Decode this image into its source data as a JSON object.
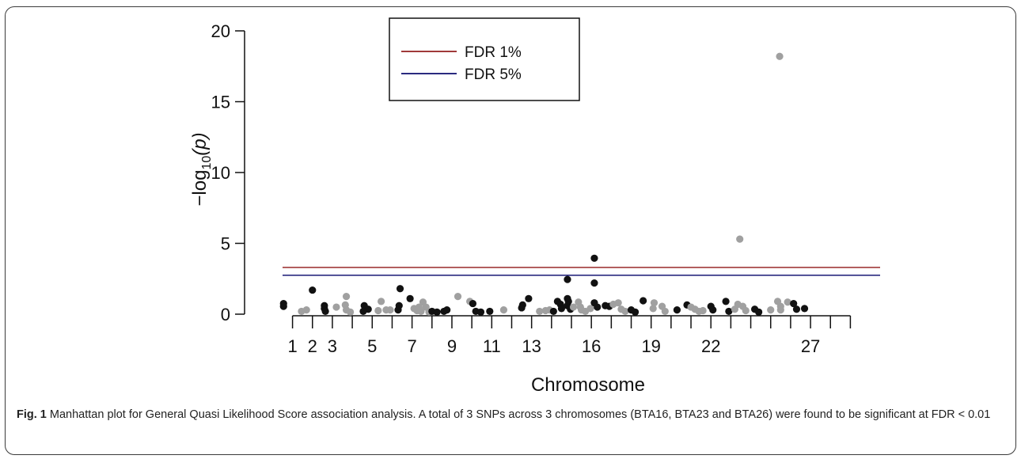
{
  "chart_data": {
    "type": "scatter",
    "title": "",
    "xlabel": "Chromosome",
    "ylabel_prefix": "−log",
    "ylabel_sub": "10",
    "ylabel_suffix": "(p)",
    "ylim": [
      0,
      20
    ],
    "yticks": [
      "0",
      "5",
      "10",
      "15",
      "20"
    ],
    "xlim": [
      0.5,
      29.5
    ],
    "chromosome_ticks": [
      1,
      2,
      3,
      4,
      5,
      6,
      7,
      8,
      9,
      10,
      11,
      12,
      13,
      14,
      15,
      16,
      17,
      18,
      19,
      20,
      21,
      22,
      23,
      24,
      25,
      26,
      27,
      28,
      29
    ],
    "chromosome_tick_labels": [
      {
        "chr": 1,
        "label": "1"
      },
      {
        "chr": 2,
        "label": "2"
      },
      {
        "chr": 3,
        "label": "3"
      },
      {
        "chr": 5,
        "label": "5"
      },
      {
        "chr": 7,
        "label": "7"
      },
      {
        "chr": 9,
        "label": "9"
      },
      {
        "chr": 11,
        "label": "11"
      },
      {
        "chr": 13,
        "label": "13"
      },
      {
        "chr": 16,
        "label": "16"
      },
      {
        "chr": 19,
        "label": "19"
      },
      {
        "chr": 22,
        "label": "22"
      },
      {
        "chr": 27,
        "label": "27"
      }
    ],
    "thresholds": [
      {
        "name": "FDR 1%",
        "y": 3.3,
        "color": "#a03a3a"
      },
      {
        "name": "FDR 5%",
        "y": 2.75,
        "color": "#2a2a80"
      }
    ],
    "legend_position": "top-center",
    "colors": {
      "odd": "#111111",
      "even": "#a0a0a0"
    },
    "points": [
      {
        "x": 0.55,
        "y": 0.75
      },
      {
        "x": 0.55,
        "y": 0.55
      },
      {
        "x": 1.45,
        "y": 0.2
      },
      {
        "x": 1.7,
        "y": 0.3
      },
      {
        "x": 2.0,
        "y": 1.7
      },
      {
        "x": 2.6,
        "y": 0.4
      },
      {
        "x": 2.6,
        "y": 0.6
      },
      {
        "x": 2.65,
        "y": 0.2
      },
      {
        "x": 3.2,
        "y": 0.5
      },
      {
        "x": 3.7,
        "y": 1.25
      },
      {
        "x": 3.65,
        "y": 0.65
      },
      {
        "x": 3.7,
        "y": 0.3
      },
      {
        "x": 3.9,
        "y": 0.15
      },
      {
        "x": 4.6,
        "y": 0.6
      },
      {
        "x": 4.8,
        "y": 0.35
      },
      {
        "x": 4.55,
        "y": 0.2
      },
      {
        "x": 5.3,
        "y": 0.25
      },
      {
        "x": 5.45,
        "y": 0.9
      },
      {
        "x": 5.7,
        "y": 0.3
      },
      {
        "x": 5.9,
        "y": 0.3
      },
      {
        "x": 6.4,
        "y": 1.8
      },
      {
        "x": 6.35,
        "y": 0.6
      },
      {
        "x": 6.3,
        "y": 0.3
      },
      {
        "x": 6.9,
        "y": 1.1
      },
      {
        "x": 7.1,
        "y": 0.4
      },
      {
        "x": 7.25,
        "y": 0.25
      },
      {
        "x": 7.35,
        "y": 0.5
      },
      {
        "x": 7.45,
        "y": 0.2
      },
      {
        "x": 7.55,
        "y": 0.85
      },
      {
        "x": 7.7,
        "y": 0.5
      },
      {
        "x": 7.85,
        "y": 0.15
      },
      {
        "x": 8.0,
        "y": 0.2
      },
      {
        "x": 8.25,
        "y": 0.15
      },
      {
        "x": 8.6,
        "y": 0.2
      },
      {
        "x": 8.75,
        "y": 0.3
      },
      {
        "x": 9.3,
        "y": 1.25
      },
      {
        "x": 9.9,
        "y": 0.9
      },
      {
        "x": 10.05,
        "y": 0.75
      },
      {
        "x": 10.2,
        "y": 0.2
      },
      {
        "x": 10.45,
        "y": 0.15
      },
      {
        "x": 10.9,
        "y": 0.2
      },
      {
        "x": 11.6,
        "y": 0.3
      },
      {
        "x": 12.55,
        "y": 0.65
      },
      {
        "x": 12.5,
        "y": 0.45
      },
      {
        "x": 12.85,
        "y": 1.1
      },
      {
        "x": 13.4,
        "y": 0.2
      },
      {
        "x": 13.7,
        "y": 0.25
      },
      {
        "x": 13.9,
        "y": 0.3
      },
      {
        "x": 14.1,
        "y": 0.2
      },
      {
        "x": 14.3,
        "y": 0.9
      },
      {
        "x": 14.45,
        "y": 0.7
      },
      {
        "x": 14.5,
        "y": 0.4
      },
      {
        "x": 14.8,
        "y": 2.45
      },
      {
        "x": 14.8,
        "y": 1.1
      },
      {
        "x": 14.85,
        "y": 0.9
      },
      {
        "x": 14.8,
        "y": 0.6
      },
      {
        "x": 14.95,
        "y": 0.35
      },
      {
        "x": 15.1,
        "y": 0.5
      },
      {
        "x": 15.35,
        "y": 0.85
      },
      {
        "x": 15.45,
        "y": 0.5
      },
      {
        "x": 15.5,
        "y": 0.3
      },
      {
        "x": 15.7,
        "y": 0.2
      },
      {
        "x": 15.95,
        "y": 0.4
      },
      {
        "x": 16.15,
        "y": 3.95
      },
      {
        "x": 16.15,
        "y": 2.2
      },
      {
        "x": 16.15,
        "y": 0.8
      },
      {
        "x": 16.3,
        "y": 0.5
      },
      {
        "x": 16.7,
        "y": 0.6
      },
      {
        "x": 16.9,
        "y": 0.55
      },
      {
        "x": 17.1,
        "y": 0.7
      },
      {
        "x": 17.35,
        "y": 0.8
      },
      {
        "x": 17.5,
        "y": 0.35
      },
      {
        "x": 17.7,
        "y": 0.2
      },
      {
        "x": 18.0,
        "y": 0.3
      },
      {
        "x": 18.2,
        "y": 0.15
      },
      {
        "x": 18.6,
        "y": 0.95
      },
      {
        "x": 19.15,
        "y": 0.8
      },
      {
        "x": 19.1,
        "y": 0.4
      },
      {
        "x": 19.55,
        "y": 0.55
      },
      {
        "x": 19.7,
        "y": 0.2
      },
      {
        "x": 20.3,
        "y": 0.3
      },
      {
        "x": 20.8,
        "y": 0.65
      },
      {
        "x": 21.0,
        "y": 0.5
      },
      {
        "x": 21.2,
        "y": 0.35
      },
      {
        "x": 21.4,
        "y": 0.2
      },
      {
        "x": 21.6,
        "y": 0.25
      },
      {
        "x": 22.0,
        "y": 0.55
      },
      {
        "x": 22.1,
        "y": 0.3
      },
      {
        "x": 22.75,
        "y": 0.9
      },
      {
        "x": 22.9,
        "y": 0.2
      },
      {
        "x": 23.45,
        "y": 5.3
      },
      {
        "x": 23.35,
        "y": 0.7
      },
      {
        "x": 23.2,
        "y": 0.35
      },
      {
        "x": 23.6,
        "y": 0.55
      },
      {
        "x": 23.75,
        "y": 0.25
      },
      {
        "x": 24.2,
        "y": 0.35
      },
      {
        "x": 24.4,
        "y": 0.15
      },
      {
        "x": 25.0,
        "y": 0.3
      },
      {
        "x": 25.45,
        "y": 18.2
      },
      {
        "x": 25.35,
        "y": 0.9
      },
      {
        "x": 25.5,
        "y": 0.55
      },
      {
        "x": 25.5,
        "y": 0.3
      },
      {
        "x": 25.85,
        "y": 0.85
      },
      {
        "x": 26.15,
        "y": 0.75
      },
      {
        "x": 26.3,
        "y": 0.35
      },
      {
        "x": 26.7,
        "y": 0.4
      }
    ]
  },
  "caption": {
    "label": "Fig. 1",
    "text": " Manhattan plot for General Quasi Likelihood Score association analysis. A total of 3 SNPs across 3 chromosomes (BTA16, BTA23 and BTA26) were found to be significant at FDR < 0.01"
  }
}
